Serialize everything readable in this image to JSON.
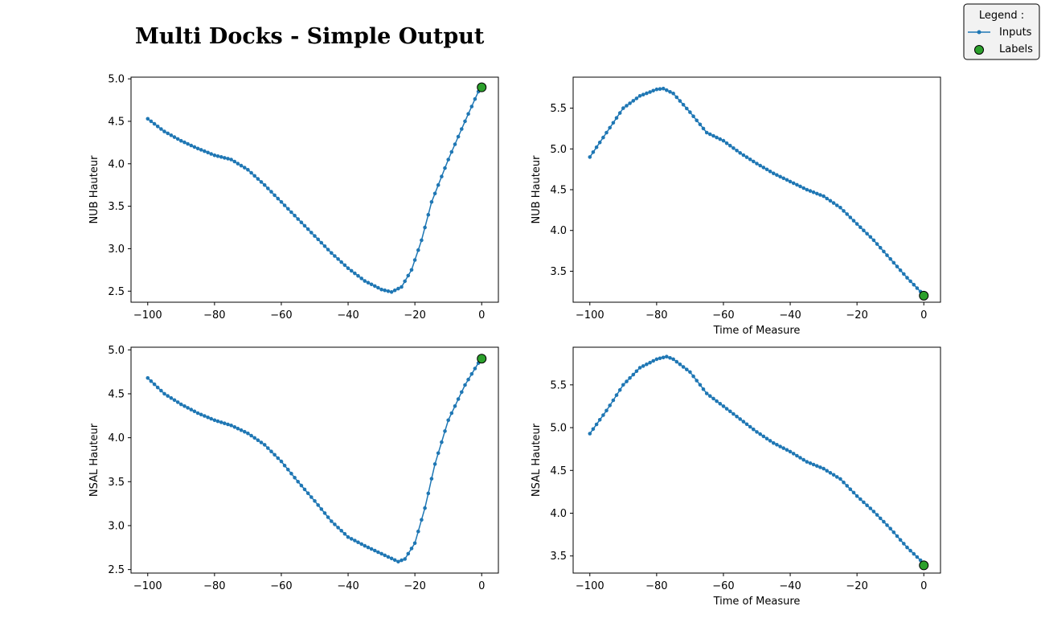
{
  "figure": {
    "title": "Multi Docks - Simple Output",
    "colors": {
      "inputs": "#1f77b4",
      "labels": "#2ca02c",
      "label_edge": "#000000"
    }
  },
  "legend": {
    "title": "Legend :",
    "entries": [
      {
        "label": "Inputs",
        "marker": "line-with-dots"
      },
      {
        "label": "Labels",
        "marker": "green-circle"
      }
    ],
    "placement": "top-right"
  },
  "chart_data": [
    {
      "type": "line",
      "panel": "top-left",
      "xlabel": "",
      "ylabel": "NUB Hauteur",
      "xlim": [
        -105,
        5
      ],
      "ylim": [
        2.37,
        5.02
      ],
      "xticks": [
        -100,
        -80,
        -60,
        -40,
        -20,
        0
      ],
      "xtick_labels": [
        "−100",
        "−80",
        "−60",
        "−40",
        "−20",
        "0"
      ],
      "yticks": [
        2.5,
        3.0,
        3.5,
        4.0,
        4.5,
        5.0
      ],
      "ytick_labels": [
        "2.5",
        "3.0",
        "3.5",
        "4.0",
        "4.5",
        "5.0"
      ],
      "inputs_keypoints": [
        [
          -100,
          4.53
        ],
        [
          -95,
          4.38
        ],
        [
          -90,
          4.27
        ],
        [
          -85,
          4.18
        ],
        [
          -80,
          4.1
        ],
        [
          -75,
          4.05
        ],
        [
          -70,
          3.93
        ],
        [
          -65,
          3.75
        ],
        [
          -60,
          3.55
        ],
        [
          -55,
          3.35
        ],
        [
          -50,
          3.15
        ],
        [
          -45,
          2.95
        ],
        [
          -40,
          2.77
        ],
        [
          -35,
          2.62
        ],
        [
          -30,
          2.52
        ],
        [
          -27,
          2.49
        ],
        [
          -24,
          2.55
        ],
        [
          -21,
          2.75
        ],
        [
          -18,
          3.1
        ],
        [
          -15,
          3.55
        ],
        [
          -10,
          4.05
        ],
        [
          -5,
          4.5
        ],
        [
          -1,
          4.85
        ]
      ],
      "label_point": [
        0,
        4.9
      ]
    },
    {
      "type": "line",
      "panel": "top-right",
      "xlabel": "Time of Measure",
      "ylabel": "NUB Hauteur",
      "xlim": [
        -105,
        5
      ],
      "ylim": [
        3.12,
        5.88
      ],
      "xticks": [
        -100,
        -80,
        -60,
        -40,
        -20,
        0
      ],
      "xtick_labels": [
        "−100",
        "−80",
        "−60",
        "−40",
        "−20",
        "0"
      ],
      "yticks": [
        3.5,
        4.0,
        4.5,
        5.0,
        5.5
      ],
      "ytick_labels": [
        "3.5",
        "4.0",
        "4.5",
        "5.0",
        "5.5"
      ],
      "inputs_keypoints": [
        [
          -100,
          4.9
        ],
        [
          -95,
          5.2
        ],
        [
          -90,
          5.5
        ],
        [
          -85,
          5.65
        ],
        [
          -80,
          5.73
        ],
        [
          -78,
          5.74
        ],
        [
          -75,
          5.68
        ],
        [
          -70,
          5.45
        ],
        [
          -65,
          5.2
        ],
        [
          -60,
          5.1
        ],
        [
          -55,
          4.95
        ],
        [
          -50,
          4.82
        ],
        [
          -45,
          4.7
        ],
        [
          -40,
          4.6
        ],
        [
          -35,
          4.5
        ],
        [
          -30,
          4.42
        ],
        [
          -25,
          4.28
        ],
        [
          -20,
          4.08
        ],
        [
          -15,
          3.88
        ],
        [
          -10,
          3.65
        ],
        [
          -5,
          3.42
        ],
        [
          -1,
          3.25
        ]
      ],
      "label_point": [
        0,
        3.2
      ]
    },
    {
      "type": "line",
      "panel": "bottom-left",
      "xlabel": "",
      "ylabel": "NSAL Hauteur",
      "xlim": [
        -105,
        5
      ],
      "ylim": [
        2.46,
        5.03
      ],
      "xticks": [
        -100,
        -80,
        -60,
        -40,
        -20,
        0
      ],
      "xtick_labels": [
        "−100",
        "−80",
        "−60",
        "−40",
        "−20",
        "0"
      ],
      "yticks": [
        2.5,
        3.0,
        3.5,
        4.0,
        4.5,
        5.0
      ],
      "ytick_labels": [
        "2.5",
        "3.0",
        "3.5",
        "4.0",
        "4.5",
        "5.0"
      ],
      "inputs_keypoints": [
        [
          -100,
          4.68
        ],
        [
          -95,
          4.5
        ],
        [
          -90,
          4.38
        ],
        [
          -85,
          4.28
        ],
        [
          -80,
          4.2
        ],
        [
          -75,
          4.14
        ],
        [
          -70,
          4.05
        ],
        [
          -65,
          3.92
        ],
        [
          -60,
          3.73
        ],
        [
          -55,
          3.5
        ],
        [
          -50,
          3.28
        ],
        [
          -45,
          3.05
        ],
        [
          -40,
          2.87
        ],
        [
          -35,
          2.77
        ],
        [
          -30,
          2.68
        ],
        [
          -25,
          2.59
        ],
        [
          -23,
          2.62
        ],
        [
          -20,
          2.8
        ],
        [
          -17,
          3.2
        ],
        [
          -14,
          3.7
        ],
        [
          -10,
          4.2
        ],
        [
          -5,
          4.6
        ],
        [
          -1,
          4.85
        ]
      ],
      "label_point": [
        0,
        4.9
      ]
    },
    {
      "type": "line",
      "panel": "bottom-right",
      "xlabel": "Time of Measure",
      "ylabel": "NSAL Hauteur",
      "xlim": [
        -105,
        5
      ],
      "ylim": [
        3.3,
        5.94
      ],
      "xticks": [
        -100,
        -80,
        -60,
        -40,
        -20,
        0
      ],
      "xtick_labels": [
        "−100",
        "−80",
        "−60",
        "−40",
        "−20",
        "0"
      ],
      "yticks": [
        3.5,
        4.0,
        4.5,
        5.0,
        5.5
      ],
      "ytick_labels": [
        "3.5",
        "4.0",
        "4.5",
        "5.0",
        "5.5"
      ],
      "inputs_keypoints": [
        [
          -100,
          4.93
        ],
        [
          -95,
          5.2
        ],
        [
          -90,
          5.5
        ],
        [
          -85,
          5.7
        ],
        [
          -80,
          5.8
        ],
        [
          -77,
          5.83
        ],
        [
          -75,
          5.8
        ],
        [
          -70,
          5.65
        ],
        [
          -65,
          5.4
        ],
        [
          -60,
          5.25
        ],
        [
          -55,
          5.1
        ],
        [
          -50,
          4.95
        ],
        [
          -45,
          4.82
        ],
        [
          -40,
          4.72
        ],
        [
          -35,
          4.6
        ],
        [
          -30,
          4.52
        ],
        [
          -25,
          4.4
        ],
        [
          -20,
          4.2
        ],
        [
          -15,
          4.02
        ],
        [
          -10,
          3.82
        ],
        [
          -5,
          3.6
        ],
        [
          -1,
          3.45
        ]
      ],
      "label_point": [
        0,
        3.39
      ]
    }
  ]
}
